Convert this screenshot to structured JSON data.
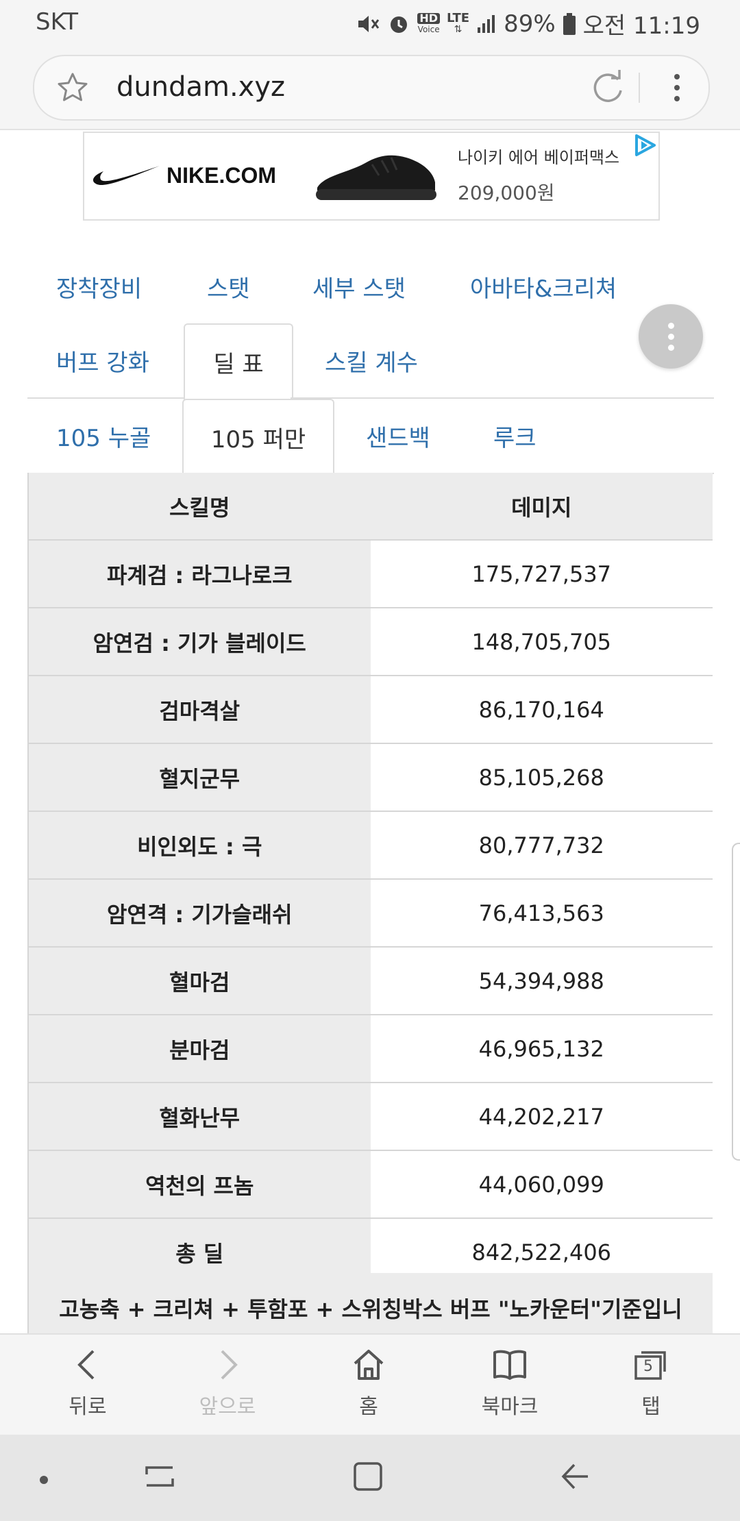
{
  "status_bar": {
    "carrier": "SKT",
    "hd_top": "HD",
    "hd_bottom": "Voice",
    "network": "LTE",
    "battery": "89%",
    "time": "오전 11:19"
  },
  "browser": {
    "url": "dundam.xyz"
  },
  "ad": {
    "brand": "NIKE.COM",
    "product": "나이키 에어 베이퍼맥스",
    "price": "209,000원"
  },
  "tabs_row1": [
    "장착장비",
    "스탯",
    "세부 스탯",
    "아바타&크리쳐"
  ],
  "tabs_row2": [
    "버프 강화",
    "딜 표",
    "스킬 계수"
  ],
  "sub_tabs": [
    "105 누골",
    "105 퍼만",
    "샌드백",
    "루크"
  ],
  "table": {
    "headers": [
      "스킬명",
      "데미지"
    ],
    "rows": [
      {
        "skill": "파계검 : 라그나로크",
        "damage": "175,727,537"
      },
      {
        "skill": "암연검 : 기가 블레이드",
        "damage": "148,705,705"
      },
      {
        "skill": "검마격살",
        "damage": "86,170,164"
      },
      {
        "skill": "혈지군무",
        "damage": "85,105,268"
      },
      {
        "skill": "비인외도 : 극",
        "damage": "80,777,732"
      },
      {
        "skill": "암연격 : 기가슬래쉬",
        "damage": "76,413,563"
      },
      {
        "skill": "혈마검",
        "damage": "54,394,988"
      },
      {
        "skill": "분마검",
        "damage": "46,965,132"
      },
      {
        "skill": "혈화난무",
        "damage": "44,202,217"
      },
      {
        "skill": "역천의 프놈",
        "damage": "44,060,099"
      },
      {
        "skill": "총 딜",
        "damage": "842,522,406"
      }
    ],
    "note": "고농축 + 크리쳐 + 투함포 + 스위칭박스 버프 \"노카운터\"기준입니"
  },
  "toolbar": {
    "back": "뒤로",
    "forward": "앞으로",
    "home": "홈",
    "bookmarks": "북마크",
    "tabs": "탭",
    "tab_count": "5"
  }
}
